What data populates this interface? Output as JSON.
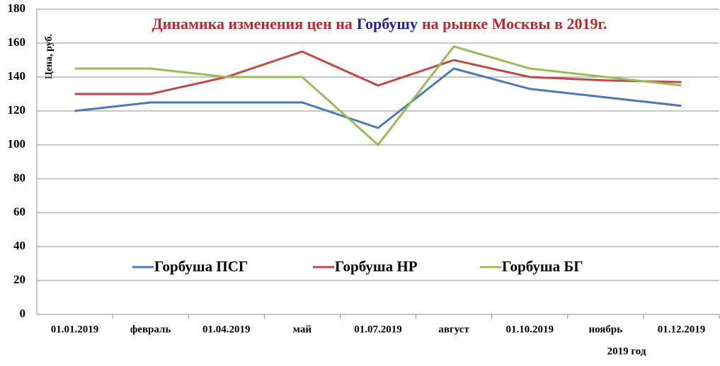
{
  "chart_data": {
    "type": "line",
    "title": [
      "Динамика изменения цен на",
      "Горбушу",
      "на рынке Москвы в 2019г."
    ],
    "title_colors": [
      "#c0262d",
      "#1f1fa8",
      "#c0262d"
    ],
    "y_label": "Цена, руб.",
    "x_label": "2019 год",
    "categories": [
      "01.01.2019",
      "февраль",
      "01.04.2019",
      "май",
      "01.07.2019",
      "август",
      "01.10.2019",
      "ноябрь",
      "01.12.2019"
    ],
    "series": [
      {
        "name": "Горбуша ПСГ",
        "color": "#4a7ab5",
        "values": [
          120,
          125,
          125,
          125,
          110,
          145,
          133,
          128,
          123
        ]
      },
      {
        "name": "Горбуша НР",
        "color": "#bc4a48",
        "values": [
          130,
          130,
          140,
          155,
          135,
          150,
          140,
          138,
          137
        ]
      },
      {
        "name": "Горбуша БГ",
        "color": "#9bbb59",
        "values": [
          145,
          145,
          140,
          140,
          100,
          158,
          145,
          140,
          135
        ]
      }
    ],
    "ylim": [
      0,
      180
    ],
    "yticks": [
      0,
      20,
      40,
      60,
      80,
      100,
      120,
      140,
      160,
      180
    ],
    "grid": true
  }
}
